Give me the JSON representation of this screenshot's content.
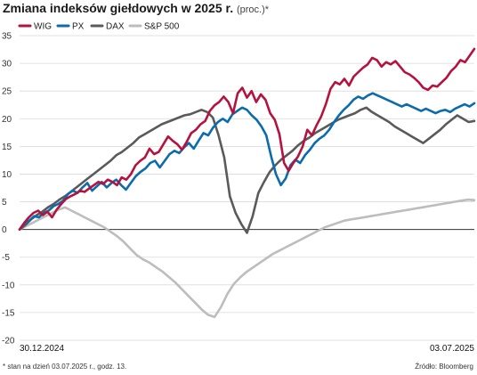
{
  "header": {
    "title": "Zmiana indeksów giełdowych w 2025 r.",
    "unit": "(proc.)*"
  },
  "footer": {
    "note": "* stan na dzień 03.07.2025 r., godz. 13.",
    "source": "Źródło: Bloomberg"
  },
  "chart_data": {
    "type": "line",
    "title": "Zmiana indeksów giełdowych w 2025 r.",
    "ylabel": "(proc.)*",
    "ylim": [
      -20,
      35
    ],
    "yticks": [
      35,
      30,
      25,
      20,
      15,
      10,
      5,
      0,
      -5,
      -10,
      -15,
      -20
    ],
    "x_start_label": "30.12.2024",
    "x_end_label": "03.07.2025",
    "grid": true,
    "legend_position": "top-left",
    "series": [
      {
        "name": "WIG",
        "color": "#b5123e",
        "values": [
          0,
          1.2,
          2.2,
          3.0,
          3.4,
          2.6,
          3.2,
          2.2,
          3.6,
          4.6,
          5.5,
          6.0,
          6.4,
          7.0,
          6.8,
          7.4,
          8.0,
          8.6,
          8.2,
          9.0,
          8.6,
          8.0,
          9.4,
          9.0,
          10.0,
          11.6,
          12.4,
          13.0,
          14.6,
          13.6,
          14.0,
          15.4,
          16.8,
          16.0,
          15.4,
          14.4,
          15.8,
          17.4,
          18.0,
          19.0,
          19.6,
          21.4,
          22.4,
          23.0,
          24.0,
          23.0,
          21.0,
          24.6,
          25.6,
          23.8,
          25.0,
          23.0,
          24.4,
          23.4,
          21.0,
          19.8,
          17.2,
          12.0,
          10.6,
          12.0,
          13.2,
          15.0,
          18.0,
          17.0,
          18.8,
          20.4,
          22.6,
          25.4,
          26.6,
          26.2,
          27.2,
          26.0,
          27.6,
          28.4,
          29.2,
          29.8,
          31.0,
          30.6,
          29.4,
          30.2,
          29.8,
          30.4,
          29.4,
          28.4,
          28.0,
          27.4,
          26.6,
          25.6,
          25.2,
          26.0,
          25.8,
          26.6,
          27.4,
          28.6,
          29.4,
          30.6,
          30.2,
          31.4,
          32.6
        ]
      },
      {
        "name": "PX",
        "color": "#0c6bad",
        "values": [
          0,
          1.0,
          1.6,
          2.4,
          2.2,
          3.0,
          3.4,
          4.2,
          4.6,
          5.2,
          6.4,
          7.0,
          6.6,
          7.6,
          8.4,
          7.0,
          7.8,
          8.6,
          7.6,
          8.4,
          9.0,
          8.0,
          7.2,
          8.4,
          9.6,
          10.4,
          11.0,
          12.0,
          12.4,
          11.2,
          12.4,
          13.6,
          14.2,
          13.8,
          14.8,
          15.6,
          14.6,
          16.0,
          17.4,
          17.0,
          18.4,
          19.4,
          20.0,
          19.4,
          20.8,
          21.4,
          22.0,
          21.6,
          20.6,
          19.8,
          18.6,
          17.0,
          13.2,
          10.0,
          8.0,
          9.2,
          11.6,
          12.6,
          12.0,
          13.4,
          14.4,
          15.6,
          16.4,
          17.0,
          18.0,
          19.4,
          20.6,
          21.6,
          22.4,
          23.4,
          24.0,
          23.6,
          24.2,
          24.6,
          24.2,
          23.8,
          23.4,
          23.0,
          22.6,
          22.2,
          22.6,
          22.2,
          21.8,
          21.4,
          21.8,
          21.4,
          21.0,
          21.4,
          21.6,
          21.2,
          21.8,
          22.2,
          22.6,
          22.2,
          22.8
        ]
      },
      {
        "name": "DAX",
        "color": "#5a5a5a",
        "values": [
          0,
          0.8,
          1.8,
          2.6,
          3.2,
          4.0,
          4.6,
          5.4,
          6.0,
          6.8,
          7.6,
          8.4,
          9.2,
          10.0,
          10.8,
          11.6,
          12.4,
          13.4,
          14.0,
          14.8,
          15.6,
          16.6,
          17.2,
          17.8,
          18.4,
          19.0,
          19.4,
          19.8,
          20.2,
          20.6,
          20.8,
          21.2,
          21.6,
          21.2,
          20.2,
          17.0,
          13.0,
          6.0,
          3.0,
          1.0,
          -0.6,
          2.4,
          6.6,
          8.6,
          10.4,
          11.6,
          12.6,
          13.4,
          14.2,
          15.2,
          16.0,
          16.6,
          17.4,
          18.0,
          18.6,
          19.2,
          19.8,
          20.2,
          20.6,
          21.0,
          21.6,
          22.0,
          21.2,
          20.6,
          20.0,
          19.4,
          18.6,
          18.0,
          17.4,
          16.8,
          16.2,
          15.6,
          16.4,
          17.2,
          18.0,
          19.0,
          19.8,
          20.6,
          20.0,
          19.4,
          19.6
        ]
      },
      {
        "name": "S&P 500",
        "color": "#bdbdbd",
        "values": [
          0,
          0.6,
          1.2,
          1.8,
          2.4,
          3.0,
          3.6,
          4.0,
          3.4,
          2.8,
          2.2,
          1.6,
          1.0,
          0.4,
          -0.4,
          -1.2,
          -2.2,
          -3.4,
          -4.6,
          -5.4,
          -6.0,
          -6.8,
          -7.6,
          -8.6,
          -9.6,
          -10.8,
          -12.0,
          -13.2,
          -14.4,
          -15.4,
          -15.8,
          -14.0,
          -11.6,
          -9.8,
          -8.6,
          -7.6,
          -6.8,
          -6.0,
          -5.2,
          -4.4,
          -3.8,
          -3.2,
          -2.6,
          -2.0,
          -1.4,
          -0.8,
          -0.2,
          0.4,
          0.8,
          1.2,
          1.6,
          1.8,
          2.0,
          2.2,
          2.4,
          2.6,
          2.8,
          3.0,
          3.2,
          3.4,
          3.6,
          3.8,
          4.0,
          4.2,
          4.4,
          4.6,
          4.8,
          5.0,
          5.2,
          5.4,
          5.3
        ]
      }
    ]
  }
}
